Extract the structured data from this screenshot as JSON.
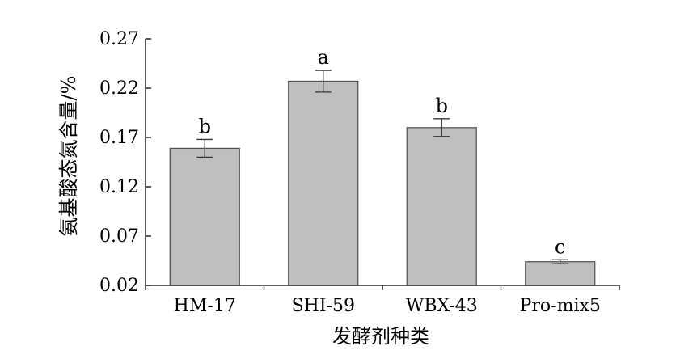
{
  "chart_data": {
    "type": "bar",
    "categories": [
      "HM-17",
      "SHI-59",
      "WBX-43",
      "Pro-mix5"
    ],
    "values": [
      0.159,
      0.227,
      0.18,
      0.044
    ],
    "errors": [
      0.009,
      0.011,
      0.009,
      0.002
    ],
    "significance": [
      "b",
      "a",
      "b",
      "c"
    ],
    "ylabel": "氨基酸态氮含量/%",
    "xlabel": "发酵剂种类",
    "ylim": [
      0.02,
      0.27
    ],
    "yticks": [
      "0.02",
      "0.07",
      "0.12",
      "0.17",
      "0.22",
      "0.27"
    ],
    "grid": false,
    "colors": {
      "bar_fill": "#bfbfbf",
      "bar_stroke": "#4d4d4d",
      "axis": "#000000"
    }
  }
}
